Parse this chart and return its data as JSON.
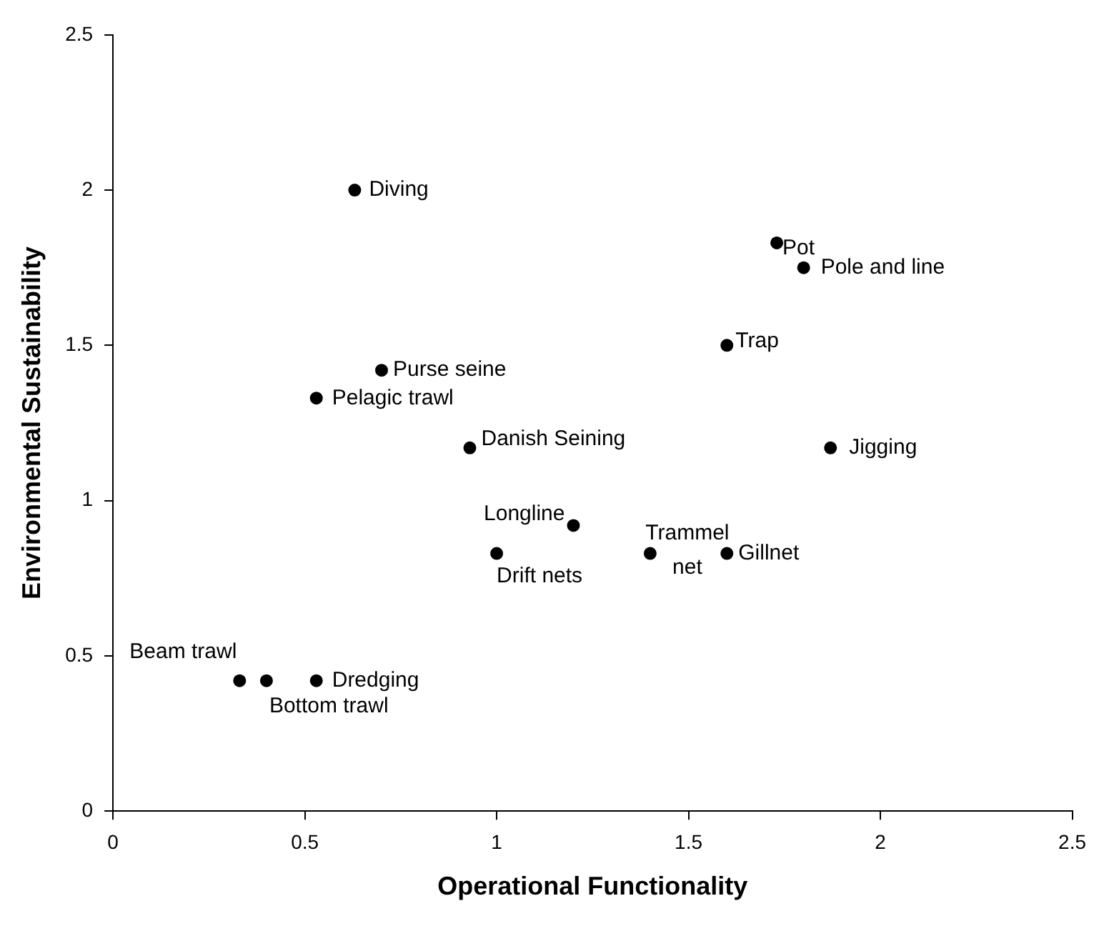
{
  "chart_data": {
    "type": "scatter",
    "xlabel": "Operational Functionality",
    "ylabel": "Environmental Sustainability",
    "x": [
      0.63,
      0.7,
      0.53,
      0.93,
      1.0,
      1.2,
      0.33,
      0.4,
      0.53,
      1.4,
      1.6,
      1.6,
      1.73,
      1.8,
      1.87
    ],
    "series": [
      {
        "color": "#000000",
        "values": [
          2.0,
          1.42,
          1.33,
          1.17,
          0.83,
          0.92,
          0.42,
          0.42,
          0.42,
          0.83,
          0.83,
          1.5,
          1.83,
          1.75,
          1.17
        ]
      }
    ],
    "annotations": [
      {
        "text": "Diving",
        "x": 0.63,
        "y": 2.0
      },
      {
        "text": "Purse seine",
        "x": 0.7,
        "y": 1.42
      },
      {
        "text": "Pelagic trawl",
        "x": 0.53,
        "y": 1.33
      },
      {
        "text": "Danish Seining",
        "x": 0.93,
        "y": 1.17
      },
      {
        "text": "Drift nets",
        "x": 1.0,
        "y": 0.83
      },
      {
        "text": "Longline",
        "x": 1.2,
        "y": 0.92
      },
      {
        "text": "Beam trawl",
        "x": 0.33,
        "y": 0.42
      },
      {
        "text": "Bottom trawl",
        "x": 0.4,
        "y": 0.42
      },
      {
        "text": "Dredging",
        "x": 0.53,
        "y": 0.42
      },
      {
        "text": "Trammel net",
        "x": 1.4,
        "y": 0.83
      },
      {
        "text": "Gillnet",
        "x": 1.6,
        "y": 0.83
      },
      {
        "text": "Trap",
        "x": 1.6,
        "y": 1.5
      },
      {
        "text": "Pot",
        "x": 1.73,
        "y": 1.83
      },
      {
        "text": "Pole and line",
        "x": 1.8,
        "y": 1.75
      },
      {
        "text": "Jigging",
        "x": 1.87,
        "y": 1.17
      }
    ],
    "xlim": [
      0,
      2.5
    ],
    "xticks": [
      0,
      0.5,
      1,
      1.5,
      2,
      2.5
    ],
    "ylim": [
      0,
      2.5
    ],
    "yticks": [
      0,
      0.5,
      1,
      1.5,
      2,
      2.5
    ],
    "grid": false,
    "legend": false,
    "marker": "circle"
  }
}
